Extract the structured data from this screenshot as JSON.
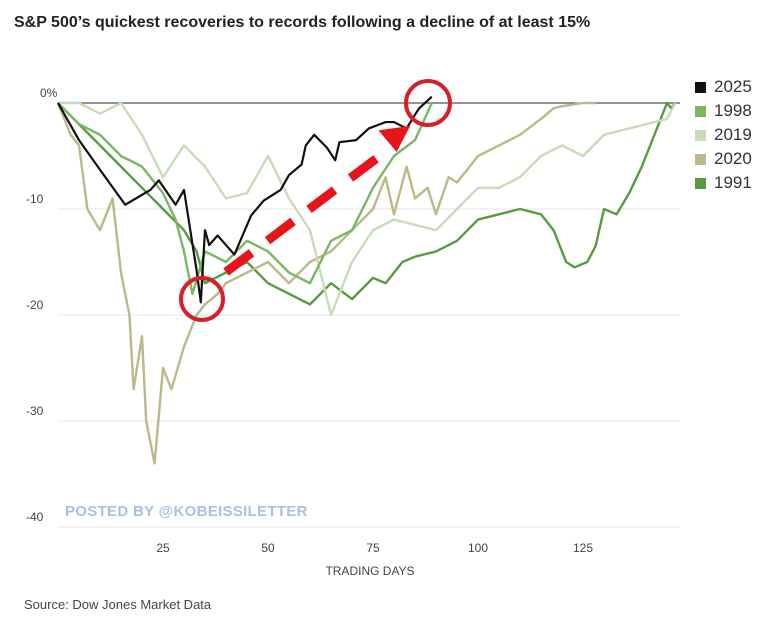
{
  "chart_data": {
    "type": "line",
    "title": "S&P 500’s quickest recoveries to records following a decline of at least 15%",
    "xlabel": "TRADING DAYS",
    "ylabel": "",
    "xlim": [
      0,
      148
    ],
    "ylim": [
      -40,
      2
    ],
    "xticks": [
      25,
      50,
      75,
      100,
      125
    ],
    "yticks": [
      {
        "v": 0,
        "label": "0%"
      },
      {
        "v": -10,
        "label": "-10"
      },
      {
        "v": -20,
        "label": "-20"
      },
      {
        "v": -30,
        "label": "-30"
      },
      {
        "v": -40,
        "label": "-40"
      }
    ],
    "legend_position": "right",
    "series": [
      {
        "name": "2025",
        "color": "#111111",
        "points": [
          [
            0,
            0
          ],
          [
            5,
            -3.5
          ],
          [
            10,
            -6.3
          ],
          [
            16,
            -9.6
          ],
          [
            22,
            -8.2
          ],
          [
            24,
            -7.3
          ],
          [
            28,
            -9.6
          ],
          [
            30,
            -8.2
          ],
          [
            33,
            -15.8
          ],
          [
            34,
            -18.8
          ],
          [
            35,
            -12
          ],
          [
            36,
            -13.4
          ],
          [
            38,
            -12.5
          ],
          [
            40,
            -13.4
          ],
          [
            42,
            -14.3
          ],
          [
            46,
            -10.6
          ],
          [
            49,
            -9.2
          ],
          [
            53,
            -8.2
          ],
          [
            55,
            -6.8
          ],
          [
            58,
            -5.8
          ],
          [
            59,
            -4
          ],
          [
            61,
            -3
          ],
          [
            64,
            -4.2
          ],
          [
            66,
            -5.4
          ],
          [
            67,
            -3.7
          ],
          [
            71,
            -3.5
          ],
          [
            74,
            -2.4
          ],
          [
            78,
            -1.8
          ],
          [
            80,
            -1.8
          ],
          [
            83,
            -2.4
          ],
          [
            85,
            -1.1
          ],
          [
            86,
            -0.5
          ],
          [
            89,
            0.6
          ]
        ]
      },
      {
        "name": "1998",
        "color": "#7bb662",
        "points": [
          [
            0,
            0
          ],
          [
            5,
            -2
          ],
          [
            10,
            -3
          ],
          [
            15,
            -5
          ],
          [
            20,
            -6
          ],
          [
            25,
            -8.5
          ],
          [
            28,
            -11
          ],
          [
            30,
            -14
          ],
          [
            32,
            -18
          ],
          [
            35,
            -14
          ],
          [
            40,
            -15
          ],
          [
            45,
            -13
          ],
          [
            50,
            -14
          ],
          [
            55,
            -16
          ],
          [
            60,
            -17
          ],
          [
            65,
            -13
          ],
          [
            70,
            -12
          ],
          [
            75,
            -8
          ],
          [
            80,
            -5
          ],
          [
            85,
            -3.5
          ],
          [
            89,
            0
          ]
        ]
      },
      {
        "name": "2019",
        "color": "#c8dcb8",
        "points": [
          [
            0,
            0
          ],
          [
            5,
            0
          ],
          [
            10,
            -1
          ],
          [
            15,
            0
          ],
          [
            20,
            -3
          ],
          [
            25,
            -7
          ],
          [
            30,
            -4
          ],
          [
            35,
            -6
          ],
          [
            40,
            -9
          ],
          [
            45,
            -8.5
          ],
          [
            50,
            -5
          ],
          [
            55,
            -9
          ],
          [
            60,
            -12
          ],
          [
            65,
            -20
          ],
          [
            70,
            -15
          ],
          [
            75,
            -12
          ],
          [
            80,
            -11
          ],
          [
            90,
            -12
          ],
          [
            95,
            -10
          ],
          [
            100,
            -8
          ],
          [
            105,
            -8
          ],
          [
            110,
            -7
          ],
          [
            115,
            -5
          ],
          [
            120,
            -4
          ],
          [
            125,
            -5
          ],
          [
            130,
            -3
          ],
          [
            135,
            -2.5
          ],
          [
            140,
            -2
          ],
          [
            145,
            -1.5
          ],
          [
            147,
            0
          ]
        ]
      },
      {
        "name": "2020",
        "color": "#bcb88a",
        "points": [
          [
            0,
            0
          ],
          [
            3,
            -3
          ],
          [
            5,
            -4
          ],
          [
            7,
            -10
          ],
          [
            10,
            -12
          ],
          [
            13,
            -9
          ],
          [
            15,
            -16
          ],
          [
            17,
            -20
          ],
          [
            18,
            -27
          ],
          [
            20,
            -22
          ],
          [
            21,
            -30
          ],
          [
            23,
            -34
          ],
          [
            25,
            -25
          ],
          [
            27,
            -27
          ],
          [
            30,
            -23
          ],
          [
            33,
            -20
          ],
          [
            35,
            -19
          ],
          [
            38,
            -18
          ],
          [
            40,
            -17
          ],
          [
            45,
            -16
          ],
          [
            50,
            -15
          ],
          [
            55,
            -17
          ],
          [
            60,
            -15
          ],
          [
            65,
            -14
          ],
          [
            70,
            -12
          ],
          [
            75,
            -10
          ],
          [
            78,
            -7
          ],
          [
            80,
            -10.5
          ],
          [
            83,
            -6
          ],
          [
            85,
            -9
          ],
          [
            88,
            -8
          ],
          [
            90,
            -10.5
          ],
          [
            93,
            -7
          ],
          [
            95,
            -7.5
          ],
          [
            100,
            -5
          ],
          [
            105,
            -4
          ],
          [
            110,
            -3
          ],
          [
            115,
            -1.5
          ],
          [
            118,
            -0.5
          ],
          [
            120,
            -0.3
          ],
          [
            125,
            0
          ],
          [
            128,
            0
          ]
        ]
      },
      {
        "name": "1991",
        "color": "#5a9a40",
        "points": [
          [
            0,
            0
          ],
          [
            10,
            -4
          ],
          [
            20,
            -8
          ],
          [
            25,
            -10
          ],
          [
            30,
            -12
          ],
          [
            33,
            -14
          ],
          [
            35,
            -17
          ],
          [
            40,
            -16
          ],
          [
            45,
            -15
          ],
          [
            50,
            -17
          ],
          [
            55,
            -18
          ],
          [
            60,
            -19
          ],
          [
            65,
            -17
          ],
          [
            70,
            -18.5
          ],
          [
            75,
            -16.5
          ],
          [
            78,
            -17
          ],
          [
            82,
            -15
          ],
          [
            85,
            -14.5
          ],
          [
            90,
            -14
          ],
          [
            95,
            -13
          ],
          [
            100,
            -11
          ],
          [
            105,
            -10.5
          ],
          [
            110,
            -10
          ],
          [
            115,
            -10.5
          ],
          [
            118,
            -12
          ],
          [
            121,
            -15
          ],
          [
            123,
            -15.5
          ],
          [
            126,
            -15
          ],
          [
            128,
            -13.5
          ],
          [
            130,
            -10
          ],
          [
            133,
            -10.5
          ],
          [
            136,
            -8.5
          ],
          [
            139,
            -6
          ],
          [
            142,
            -3
          ],
          [
            144,
            -1
          ],
          [
            145,
            0
          ],
          [
            146,
            -0.5
          ],
          [
            147,
            0
          ]
        ]
      }
    ]
  },
  "source": "Source: Dow Jones Market Data",
  "watermark": "POSTED BY @KOBEISSILETTER"
}
